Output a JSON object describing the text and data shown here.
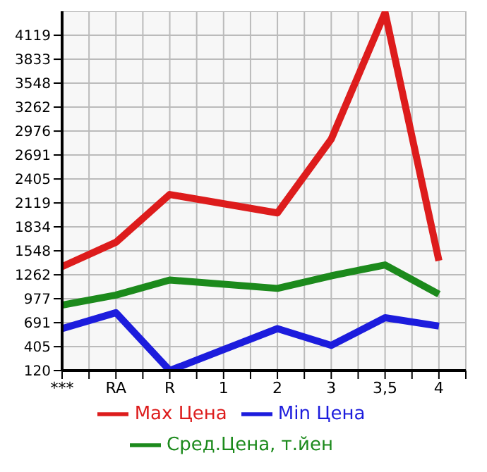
{
  "chart_data": {
    "type": "line",
    "categories": [
      "***",
      "RA",
      "R",
      "1",
      "2",
      "3",
      "3,5",
      "4"
    ],
    "series": [
      {
        "name": "Max Цена",
        "color": "#dd1c1c",
        "values": [
          1360,
          1650,
          2220,
          null,
          2000,
          2880,
          4390,
          1430
        ]
      },
      {
        "name": "Min Цена",
        "color": "#1c1cdd",
        "values": [
          620,
          810,
          120,
          null,
          620,
          420,
          750,
          650
        ]
      },
      {
        "name": "Сред.Цена, т.йен",
        "color": "#1c8a1c",
        "values": [
          900,
          1020,
          1200,
          null,
          1100,
          1250,
          1380,
          1030
        ]
      }
    ],
    "ylim": [
      120,
      4405
    ],
    "yticks": [
      120,
      405,
      691,
      977,
      1262,
      1548,
      1834,
      2119,
      2405,
      2691,
      2976,
      3262,
      3548,
      3833,
      4119
    ],
    "grid": true,
    "legend": "bottom",
    "marker": "none",
    "line_style": "solid"
  }
}
